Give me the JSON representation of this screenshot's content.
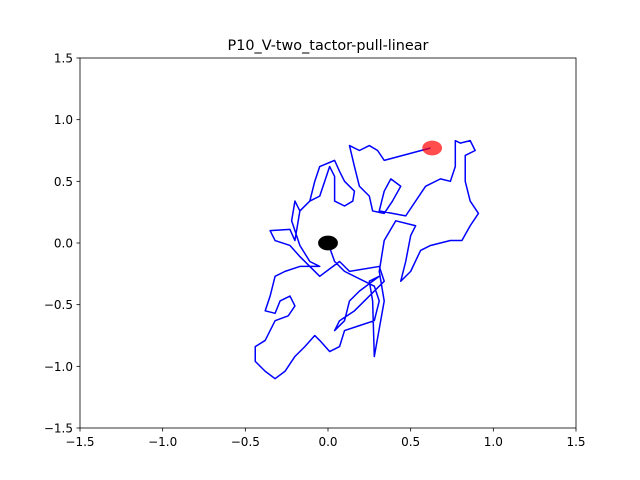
{
  "chart_data": {
    "type": "line",
    "title": "P10_V-two_tactor-pull-linear",
    "xlim": [
      -1.5,
      1.5
    ],
    "ylim": [
      -1.5,
      1.5
    ],
    "xticks": [
      {
        "value": -1.5,
        "label": "−1.5"
      },
      {
        "value": -1.0,
        "label": "−1.0"
      },
      {
        "value": -0.5,
        "label": "−0.5"
      },
      {
        "value": 0,
        "label": "0.0"
      },
      0.5,
      {
        "value": 1.0,
        "label": "1.0"
      },
      1.5
    ],
    "yticks": [
      {
        "value": -1.5,
        "label": "−1.5"
      },
      {
        "value": -1.0,
        "label": "−1.0"
      },
      {
        "value": -0.5,
        "label": "−0.5"
      },
      {
        "value": 0,
        "label": "0.0"
      },
      0.5,
      {
        "value": 1.0,
        "label": "1.0"
      },
      1.5
    ],
    "grid": false,
    "series": [
      {
        "color": "#0000ff",
        "x": [
          0.62,
          0.34,
          0.3,
          0.25,
          0.19,
          0.13,
          0.16,
          0.19,
          0.25,
          0.27,
          0.34,
          0.39,
          0.44,
          0.38,
          0.34,
          0.31,
          0.47,
          0.59,
          0.68,
          0.74,
          0.77,
          0.77,
          0.8,
          0.86,
          0.89,
          0.83,
          0.83,
          0.86,
          0.91,
          0.86,
          0.81,
          0.74,
          0.62,
          0.56,
          0.5,
          0.44,
          0.47,
          0.5,
          0.53,
          0.41,
          0.34,
          0.31,
          0.34,
          0.28,
          0.27,
          0.25,
          0.31,
          0.19,
          0.13,
          0.1,
          0.04,
          0.07,
          0.16,
          0.34,
          0.31,
          0.13,
          0.07,
          0.01,
          -0.05,
          -0.11,
          -0.17,
          -0.23,
          -0.32,
          -0.35,
          -0.23,
          -0.2,
          -0.17,
          -0.11,
          -0.05,
          -0.02,
          0.01,
          0.04,
          0.04,
          0.1,
          0.15,
          0.16,
          0.1,
          0.07,
          0.04,
          -0.05,
          -0.08,
          -0.11,
          -0.17,
          -0.2,
          -0.22,
          -0.17,
          -0.11,
          -0.05,
          -0.17,
          -0.26,
          -0.32,
          -0.35,
          -0.38,
          -0.32,
          -0.29,
          -0.23,
          -0.2,
          -0.24,
          -0.32,
          -0.35,
          -0.38,
          -0.44,
          -0.44,
          -0.38,
          -0.32,
          -0.26,
          -0.2,
          -0.14,
          -0.08,
          -0.05,
          0.01,
          0.07,
          0.1,
          0.19,
          0.28,
          0.31,
          0.28,
          0.1,
          0.04,
          0.0
        ],
        "values": [
          0.77,
          0.67,
          0.75,
          0.79,
          0.75,
          0.79,
          0.62,
          0.46,
          0.38,
          0.26,
          0.24,
          0.34,
          0.46,
          0.52,
          0.42,
          0.26,
          0.22,
          0.46,
          0.52,
          0.5,
          0.62,
          0.83,
          0.81,
          0.83,
          0.75,
          0.71,
          0.5,
          0.34,
          0.24,
          0.14,
          0.02,
          0.02,
          -0.02,
          -0.06,
          -0.23,
          -0.31,
          -0.15,
          0.06,
          0.14,
          0.18,
          0.02,
          -0.23,
          -0.47,
          -0.92,
          -0.47,
          -0.31,
          -0.27,
          -0.39,
          -0.47,
          -0.63,
          -0.71,
          -0.63,
          -0.55,
          -0.31,
          -0.19,
          -0.23,
          -0.15,
          -0.21,
          -0.27,
          -0.19,
          -0.11,
          -0.02,
          0.02,
          0.1,
          0.11,
          0.02,
          0.26,
          0.34,
          0.38,
          0.5,
          0.62,
          0.54,
          0.34,
          0.3,
          0.34,
          0.42,
          0.5,
          0.58,
          0.67,
          0.62,
          0.5,
          0.34,
          0.26,
          0.34,
          0.18,
          -0.02,
          -0.15,
          -0.19,
          -0.19,
          -0.23,
          -0.27,
          -0.43,
          -0.55,
          -0.57,
          -0.47,
          -0.43,
          -0.51,
          -0.59,
          -0.63,
          -0.71,
          -0.79,
          -0.84,
          -0.96,
          -1.04,
          -1.1,
          -1.04,
          -0.92,
          -0.84,
          -0.75,
          -0.79,
          -0.88,
          -0.84,
          -0.71,
          -0.67,
          -0.63,
          -0.47,
          -0.35,
          -0.23,
          -0.15,
          0.0
        ]
      }
    ],
    "markers": [
      {
        "x": 0,
        "y": 0,
        "radius": 0.06,
        "color": "#000000",
        "alpha": 1
      },
      {
        "x": 0.63,
        "y": 0.77,
        "radius": 0.06,
        "color": "#ff0000",
        "alpha": 0.7
      }
    ]
  }
}
